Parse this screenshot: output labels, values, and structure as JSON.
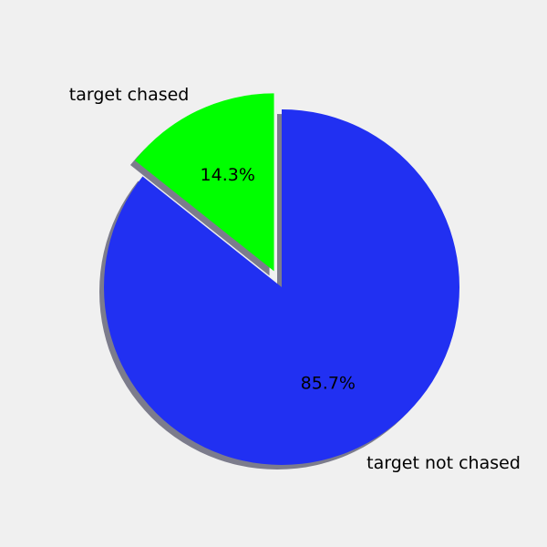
{
  "chart_data": {
    "type": "pie",
    "title": "",
    "slices": [
      {
        "label": "target not chased",
        "value": 85.7,
        "percent_label": "85.7%",
        "color": "#2130f2",
        "exploded": false
      },
      {
        "label": "target chased",
        "value": 14.3,
        "percent_label": "14.3%",
        "color": "#00ff00",
        "exploded": true
      }
    ],
    "start_angle_deg": 90,
    "direction": "clockwise",
    "shadow": true,
    "shadow_color": "#7c7c8c",
    "background": "#f0f0f0"
  }
}
